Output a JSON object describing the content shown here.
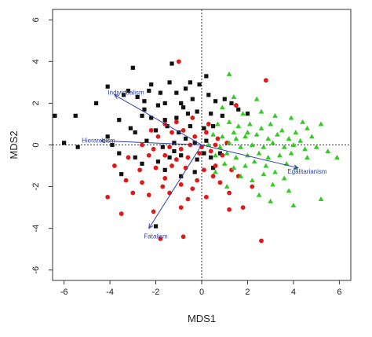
{
  "chart_data": {
    "type": "scatter",
    "title": "",
    "xlabel": "MDS1",
    "ylabel": "MDS2",
    "xlim": [
      -6.5,
      6.5
    ],
    "ylim": [
      -6.5,
      6.5
    ],
    "xticks": [
      -6,
      -4,
      -2,
      0,
      2,
      4,
      6
    ],
    "yticks": [
      -6,
      -4,
      -2,
      0,
      2,
      4,
      6
    ],
    "grid": false,
    "reference_lines": {
      "x": 0,
      "y": 0,
      "style": "dotted"
    },
    "colors": {
      "black_squares": "#111111",
      "red_circles": "#e01818",
      "green_triangles": "#33cc22",
      "vectors": "#2d3fa8"
    },
    "series": [
      {
        "marker": "square",
        "color": "#111111",
        "points": [
          [
            -3.0,
            3.7
          ],
          [
            -1.4,
            3.0
          ],
          [
            -0.5,
            3.0
          ],
          [
            -2.2,
            2.9
          ],
          [
            -4.1,
            2.8
          ],
          [
            -3.2,
            2.6
          ],
          [
            -1.8,
            2.5
          ],
          [
            -1.1,
            2.5
          ],
          [
            -0.7,
            2.7
          ],
          [
            -2.3,
            2.6
          ],
          [
            -4.6,
            2.0
          ],
          [
            -1.6,
            2.0
          ],
          [
            -3.4,
            2.4
          ],
          [
            -2.8,
            2.3
          ],
          [
            -2.5,
            2.1
          ],
          [
            -1.9,
            1.9
          ],
          [
            -0.9,
            2.0
          ],
          [
            -0.4,
            2.2
          ],
          [
            0.3,
            2.4
          ],
          [
            0.6,
            2.1
          ],
          [
            1.0,
            2.2
          ],
          [
            1.6,
            1.7
          ],
          [
            2.0,
            1.5
          ],
          [
            -5.5,
            1.4
          ],
          [
            -3.6,
            1.2
          ],
          [
            -2.6,
            1.4
          ],
          [
            -2.2,
            1.3
          ],
          [
            -1.6,
            1.2
          ],
          [
            -1.1,
            1.3
          ],
          [
            -0.6,
            1.5
          ],
          [
            -0.2,
            1.6
          ],
          [
            0.4,
            1.5
          ],
          [
            0.9,
            1.4
          ],
          [
            -3.1,
            0.8
          ],
          [
            -2.9,
            0.6
          ],
          [
            -2.0,
            0.7
          ],
          [
            -1.5,
            0.9
          ],
          [
            -1.0,
            0.6
          ],
          [
            -0.5,
            0.9
          ],
          [
            0.1,
            0.8
          ],
          [
            0.5,
            0.9
          ],
          [
            -4.1,
            0.4
          ],
          [
            -2.4,
            0.2
          ],
          [
            -1.7,
            -0.1
          ],
          [
            -1.2,
            0.1
          ],
          [
            -0.7,
            0.3
          ],
          [
            -0.3,
            0.1
          ],
          [
            0.2,
            0.2
          ],
          [
            -6.4,
            1.4
          ],
          [
            -6.0,
            0.1
          ],
          [
            -5.4,
            -0.1
          ],
          [
            -3.6,
            -0.4
          ],
          [
            -2.9,
            -0.6
          ],
          [
            -2.6,
            -0.9
          ],
          [
            -1.9,
            -0.8
          ],
          [
            -1.4,
            -0.6
          ],
          [
            -0.9,
            -0.5
          ],
          [
            -0.2,
            -0.7
          ],
          [
            0.4,
            -0.6
          ],
          [
            -3.5,
            -1.4
          ],
          [
            -1.6,
            -1.2
          ],
          [
            -0.9,
            -1.5
          ],
          [
            -0.3,
            -1.3
          ],
          [
            0.5,
            -1.1
          ],
          [
            -2.0,
            -3.9
          ],
          [
            -1.3,
            3.9
          ],
          [
            0.2,
            3.3
          ],
          [
            -0.1,
            2.9
          ],
          [
            1.3,
            2.0
          ],
          [
            -2.5,
            1.7
          ],
          [
            -0.8,
            1.8
          ],
          [
            -3.9,
            0.0
          ],
          [
            0.8,
            -0.4
          ],
          [
            -1.2,
            -0.3
          ],
          [
            0.1,
            -0.4
          ]
        ]
      },
      {
        "marker": "circle",
        "color": "#e01818",
        "points": [
          [
            -1.0,
            4.0
          ],
          [
            2.8,
            3.1
          ],
          [
            1.5,
            1.9
          ],
          [
            -1.6,
            1.0
          ],
          [
            -1.1,
            1.1
          ],
          [
            -0.4,
            1.3
          ],
          [
            0.3,
            1.0
          ],
          [
            -2.2,
            0.7
          ],
          [
            -1.9,
            0.4
          ],
          [
            -1.3,
            0.6
          ],
          [
            -0.8,
            0.7
          ],
          [
            -0.3,
            0.4
          ],
          [
            0.2,
            0.6
          ],
          [
            0.7,
            0.3
          ],
          [
            -2.6,
            0.0
          ],
          [
            -2.1,
            -0.2
          ],
          [
            -1.4,
            -0.1
          ],
          [
            -0.9,
            -0.2
          ],
          [
            -0.5,
            0.0
          ],
          [
            0.0,
            -0.1
          ],
          [
            0.6,
            0.0
          ],
          [
            1.1,
            0.1
          ],
          [
            -3.2,
            -0.6
          ],
          [
            -2.3,
            -0.5
          ],
          [
            -1.6,
            -0.5
          ],
          [
            -1.1,
            -0.7
          ],
          [
            -0.6,
            -0.6
          ],
          [
            -0.1,
            -0.4
          ],
          [
            0.4,
            -0.3
          ],
          [
            0.9,
            -0.5
          ],
          [
            -3.8,
            -1.0
          ],
          [
            -2.7,
            -1.2
          ],
          [
            -2.0,
            -1.1
          ],
          [
            -1.3,
            -1.0
          ],
          [
            -0.7,
            -1.1
          ],
          [
            0.1,
            -1.2
          ],
          [
            0.6,
            -1.0
          ],
          [
            1.3,
            -1.2
          ],
          [
            -3.3,
            -1.7
          ],
          [
            -2.6,
            -1.8
          ],
          [
            -1.6,
            -1.6
          ],
          [
            -0.9,
            -1.9
          ],
          [
            -0.2,
            -1.7
          ],
          [
            0.8,
            -1.8
          ],
          [
            1.6,
            -1.5
          ],
          [
            -4.1,
            -2.5
          ],
          [
            -3.0,
            -2.3
          ],
          [
            -2.3,
            -2.4
          ],
          [
            -1.4,
            -2.3
          ],
          [
            -0.6,
            -2.6
          ],
          [
            0.2,
            -2.5
          ],
          [
            1.2,
            -2.3
          ],
          [
            -3.5,
            -3.3
          ],
          [
            -2.1,
            -3.2
          ],
          [
            -0.9,
            -3.0
          ],
          [
            1.2,
            -3.1
          ],
          [
            -1.8,
            -4.5
          ],
          [
            -0.8,
            -4.4
          ],
          [
            2.6,
            -4.6
          ],
          [
            1.8,
            -3.0
          ],
          [
            -0.4,
            -2.1
          ],
          [
            0.5,
            -1.5
          ],
          [
            -1.7,
            -2.0
          ],
          [
            2.2,
            -2.0
          ]
        ]
      },
      {
        "marker": "triangle",
        "color": "#33cc22",
        "points": [
          [
            1.2,
            3.4
          ],
          [
            1.4,
            2.3
          ],
          [
            2.4,
            2.2
          ],
          [
            0.9,
            1.8
          ],
          [
            1.8,
            1.5
          ],
          [
            2.6,
            1.6
          ],
          [
            3.2,
            1.4
          ],
          [
            3.9,
            1.3
          ],
          [
            4.4,
            1.1
          ],
          [
            5.2,
            1.0
          ],
          [
            0.7,
            1.0
          ],
          [
            1.2,
            1.1
          ],
          [
            1.6,
            0.9
          ],
          [
            2.1,
            1.0
          ],
          [
            2.6,
            0.8
          ],
          [
            3.0,
            1.0
          ],
          [
            3.5,
            0.7
          ],
          [
            4.1,
            0.6
          ],
          [
            4.6,
            0.8
          ],
          [
            0.5,
            0.5
          ],
          [
            0.9,
            0.4
          ],
          [
            1.4,
            0.6
          ],
          [
            1.9,
            0.4
          ],
          [
            2.4,
            0.5
          ],
          [
            2.9,
            0.3
          ],
          [
            3.3,
            0.5
          ],
          [
            3.8,
            0.3
          ],
          [
            4.3,
            0.2
          ],
          [
            4.8,
            0.4
          ],
          [
            0.3,
            0.0
          ],
          [
            0.8,
            -0.1
          ],
          [
            1.2,
            0.1
          ],
          [
            1.7,
            -0.1
          ],
          [
            2.2,
            0.0
          ],
          [
            2.7,
            -0.1
          ],
          [
            3.1,
            0.1
          ],
          [
            3.6,
            -0.1
          ],
          [
            4.0,
            0.0
          ],
          [
            4.5,
            -0.2
          ],
          [
            5.0,
            -0.1
          ],
          [
            5.5,
            -0.3
          ],
          [
            0.6,
            -0.5
          ],
          [
            1.1,
            -0.4
          ],
          [
            1.5,
            -0.6
          ],
          [
            2.0,
            -0.5
          ],
          [
            2.5,
            -0.4
          ],
          [
            2.9,
            -0.6
          ],
          [
            3.4,
            -0.5
          ],
          [
            3.9,
            -0.4
          ],
          [
            4.6,
            -0.6
          ],
          [
            5.9,
            -0.6
          ],
          [
            1.0,
            -0.9
          ],
          [
            1.4,
            -1.1
          ],
          [
            1.9,
            -1.0
          ],
          [
            2.3,
            -0.8
          ],
          [
            2.8,
            -1.0
          ],
          [
            3.2,
            -1.3
          ],
          [
            3.7,
            -0.9
          ],
          [
            4.1,
            -1.1
          ],
          [
            1.7,
            -1.5
          ],
          [
            2.2,
            -1.7
          ],
          [
            2.7,
            -1.4
          ],
          [
            3.1,
            -1.9
          ],
          [
            3.6,
            -1.6
          ],
          [
            2.5,
            -2.4
          ],
          [
            3.0,
            -2.7
          ],
          [
            4.0,
            -2.9
          ],
          [
            5.2,
            -2.6
          ],
          [
            1.1,
            -2.0
          ],
          [
            3.8,
            -2.2
          ],
          [
            0.6,
            -1.3
          ],
          [
            1.5,
            0.3
          ],
          [
            2.0,
            0.6
          ]
        ]
      }
    ],
    "vectors": [
      {
        "label": "Individualism",
        "to": [
          -3.8,
          2.4
        ],
        "label_at": [
          -3.3,
          2.5
        ]
      },
      {
        "label": "Hierarchism",
        "to": [
          -4.4,
          0.2
        ],
        "label_at": [
          -4.5,
          0.2
        ]
      },
      {
        "label": "Egalitarianism",
        "to": [
          4.2,
          -1.1
        ],
        "label_at": [
          4.6,
          -1.3
        ]
      },
      {
        "label": "Fatalism",
        "to": [
          -2.3,
          -4.0
        ],
        "label_at": [
          -2.0,
          -4.4
        ]
      }
    ]
  }
}
